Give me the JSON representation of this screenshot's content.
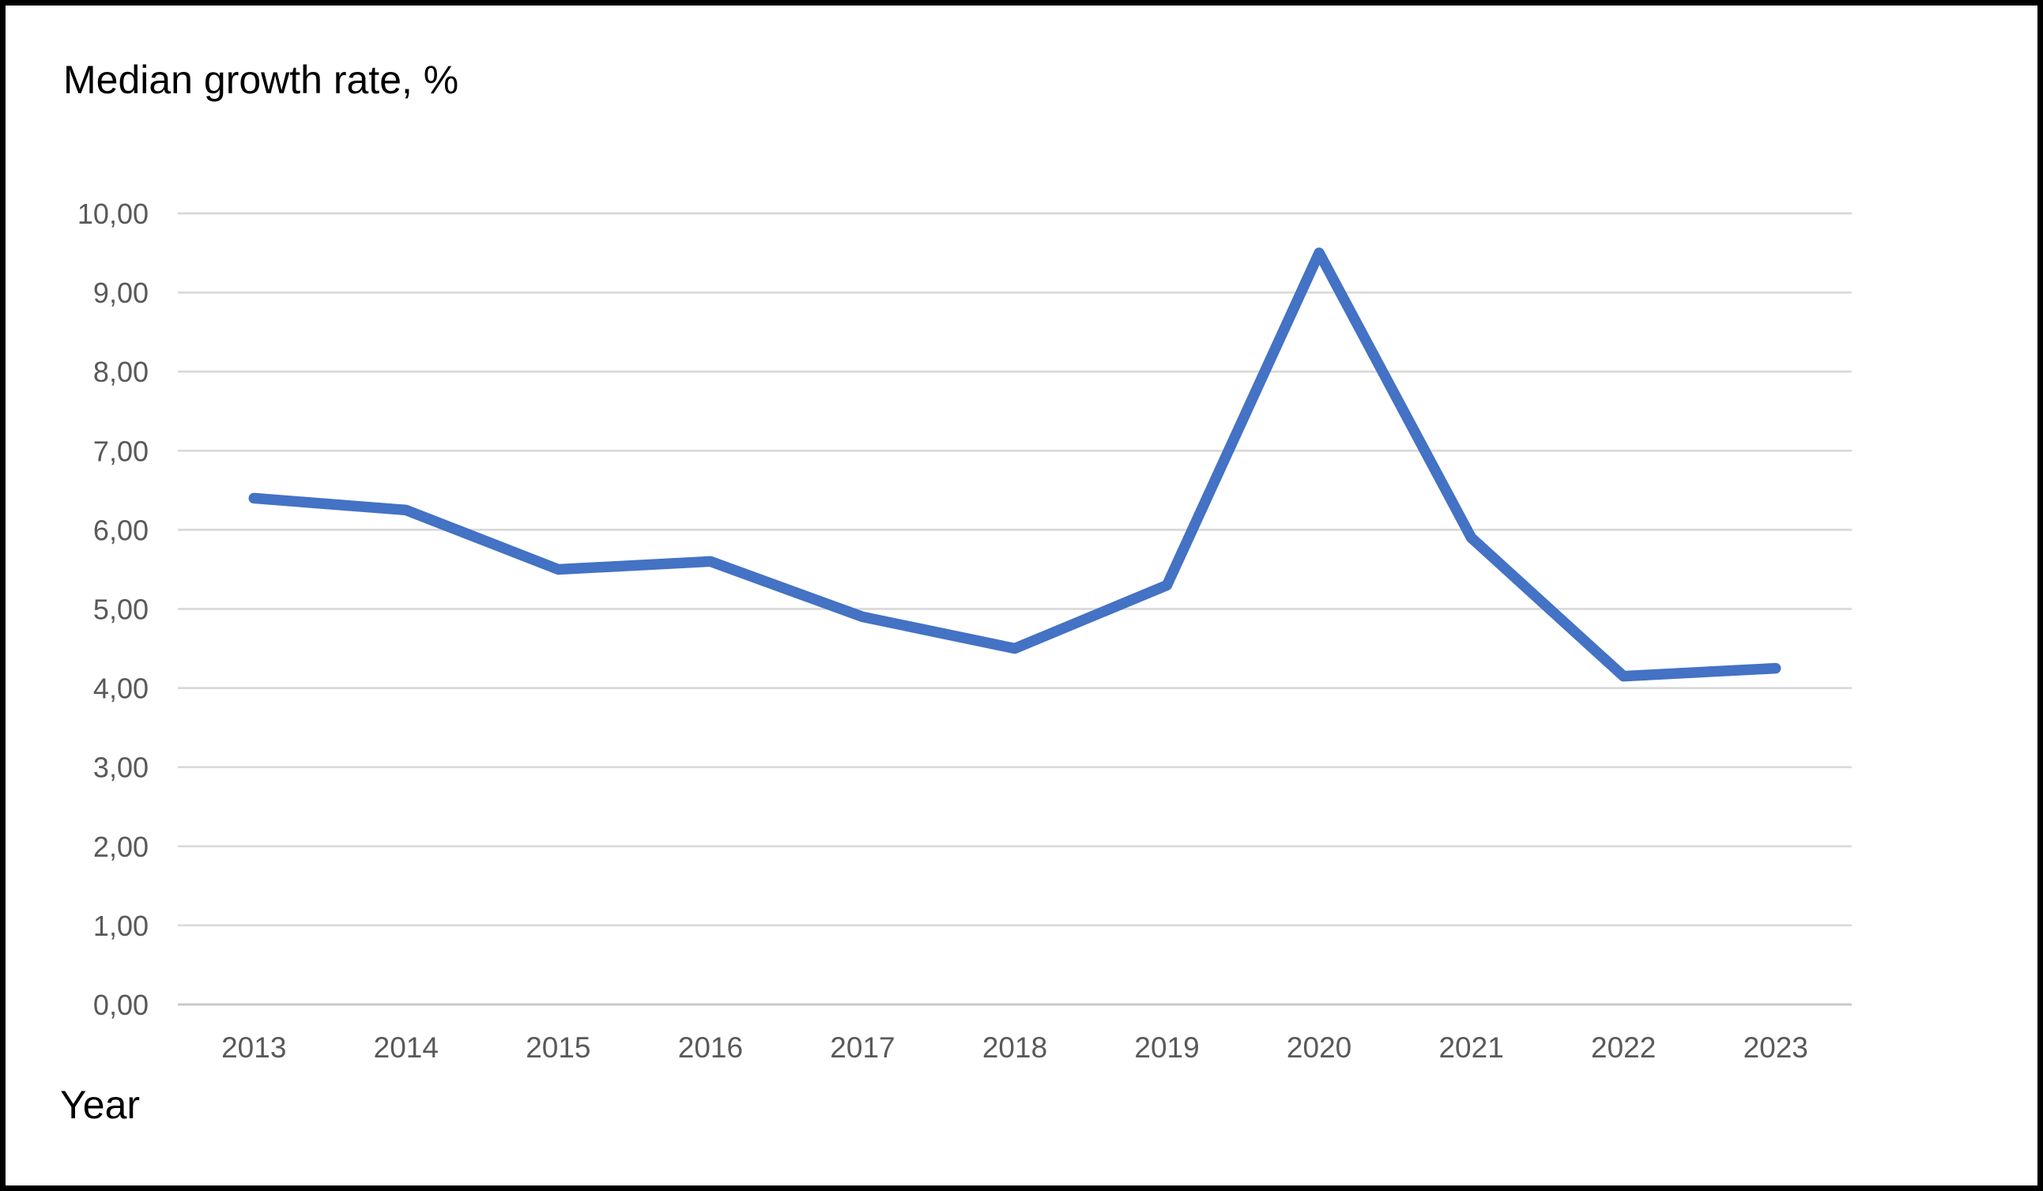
{
  "page": {
    "background": "#FFFFFF",
    "frame_color": "#000000"
  },
  "chart_data": {
    "type": "line",
    "title": "Median growth rate, %",
    "xlabel": "Year",
    "ylabel": "",
    "categories": [
      "2013",
      "2014",
      "2015",
      "2016",
      "2017",
      "2018",
      "2019",
      "2020",
      "2021",
      "2022",
      "2023"
    ],
    "series": [
      {
        "name": "Median growth rate",
        "values": [
          6.4,
          6.25,
          5.5,
          5.6,
          4.9,
          4.5,
          5.3,
          9.5,
          5.9,
          4.15,
          4.25
        ]
      }
    ],
    "ylim": [
      0,
      10
    ],
    "y_tick_step": 1,
    "y_tick_labels": [
      "0,00",
      "1,00",
      "2,00",
      "3,00",
      "4,00",
      "5,00",
      "6,00",
      "7,00",
      "8,00",
      "9,00",
      "10,00"
    ],
    "grid": "horizontal",
    "legend": "none",
    "colors": {
      "line": "#4472C4",
      "gridline": "#D9D9D9",
      "axis_line": "#C8C8C8",
      "tick_label": "#595959",
      "title_text": "#000000"
    }
  }
}
